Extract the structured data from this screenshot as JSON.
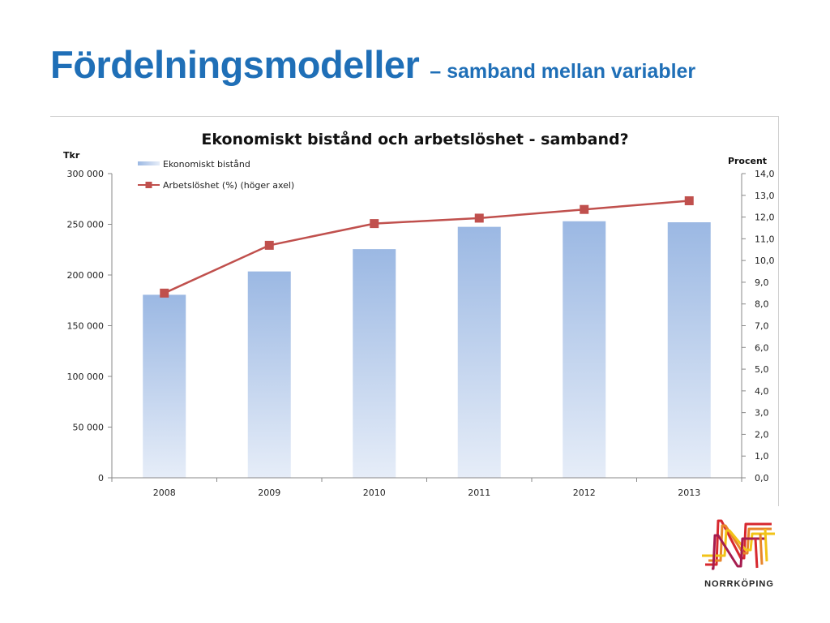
{
  "slide": {
    "title_main": "Fördelningsmodeller",
    "title_sub": "– samband mellan variabler"
  },
  "logo": {
    "text": "NORRKÖPING",
    "icon": "norrkoping-n-logo"
  },
  "chart_data": {
    "type": "bar",
    "title": "Ekonomiskt bistånd och arbetslöshet - samband?",
    "categories": [
      "2008",
      "2009",
      "2010",
      "2011",
      "2012",
      "2013"
    ],
    "y_left": {
      "label": "Tkr",
      "ylim": [
        0,
        300000
      ],
      "ticks": [
        "0",
        "50 000",
        "100 000",
        "150 000",
        "200 000",
        "250 000",
        "300 000"
      ]
    },
    "y_right": {
      "label": "Procent",
      "ylim": [
        0,
        14
      ],
      "ticks": [
        "0,0",
        "1,0",
        "2,0",
        "3,0",
        "4,0",
        "5,0",
        "6,0",
        "7,0",
        "8,0",
        "9,0",
        "10,0",
        "11,0",
        "12,0",
        "13,0",
        "14,0"
      ]
    },
    "series": [
      {
        "name": "Ekonomiskt bistånd",
        "type": "bar",
        "axis": "left",
        "values": [
          180500,
          203500,
          225500,
          247500,
          253000,
          252000
        ],
        "color_top": "#9bb8e3",
        "color_bottom": "#e6edf8"
      },
      {
        "name": "Arbetslöshet (%) (höger axel)",
        "type": "line",
        "axis": "right",
        "values": [
          8.5,
          10.7,
          11.7,
          11.95,
          12.35,
          12.75
        ],
        "color": "#c0504d"
      }
    ],
    "legend_position": "top-left",
    "grid": false
  }
}
